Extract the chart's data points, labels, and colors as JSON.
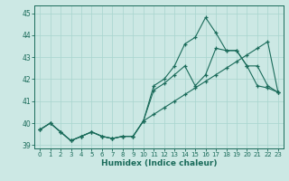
{
  "xlabel": "Humidex (Indice chaleur)",
  "background_color": "#cce8e4",
  "line_color": "#1a6b5a",
  "grid_color": "#a8d5ce",
  "xlim": [
    -0.5,
    23.5
  ],
  "ylim": [
    38.85,
    45.35
  ],
  "yticks": [
    39,
    40,
    41,
    42,
    43,
    44,
    45
  ],
  "xticks": [
    0,
    1,
    2,
    3,
    4,
    5,
    6,
    7,
    8,
    9,
    10,
    11,
    12,
    13,
    14,
    15,
    16,
    17,
    18,
    19,
    20,
    21,
    22,
    23
  ],
  "series1": [
    39.7,
    40.0,
    39.6,
    39.2,
    39.4,
    39.6,
    39.4,
    39.3,
    39.4,
    39.4,
    40.1,
    41.7,
    42.0,
    42.6,
    43.6,
    43.9,
    44.8,
    44.1,
    43.3,
    43.3,
    42.6,
    41.7,
    41.6,
    41.4
  ],
  "series2": [
    39.7,
    40.0,
    39.6,
    39.2,
    39.4,
    39.6,
    39.4,
    39.3,
    39.4,
    39.4,
    40.1,
    41.5,
    41.8,
    42.2,
    42.6,
    41.7,
    42.2,
    43.4,
    43.3,
    43.3,
    42.6,
    42.6,
    41.7,
    41.4
  ],
  "series3": [
    39.7,
    40.0,
    39.6,
    39.2,
    39.4,
    39.6,
    39.4,
    39.3,
    39.4,
    39.4,
    40.1,
    40.4,
    40.7,
    41.0,
    41.3,
    41.6,
    41.9,
    42.2,
    42.5,
    42.8,
    43.1,
    43.4,
    43.7,
    41.4
  ]
}
